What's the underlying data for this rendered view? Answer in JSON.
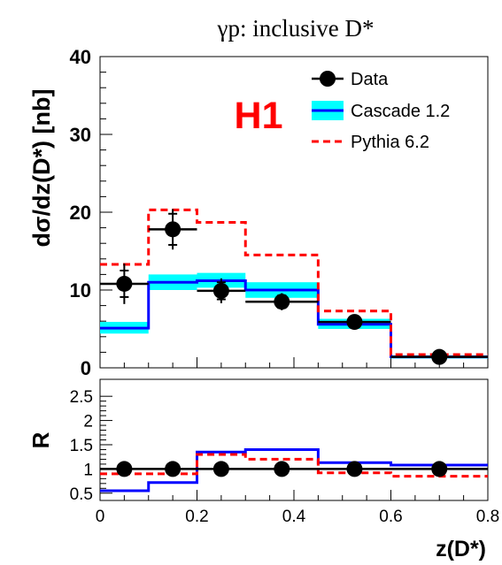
{
  "title": "γp:  inclusive D*",
  "watermark": "H1",
  "chart_data": [
    {
      "type": "histogram",
      "panel": "main",
      "ylabel": "dσ/dz(D*) [nb]",
      "xlim": [
        0,
        0.8
      ],
      "ylim": [
        0,
        40
      ],
      "yticks": [
        0,
        10,
        20,
        30,
        40
      ],
      "bins": [
        [
          0,
          0.1
        ],
        [
          0.1,
          0.2
        ],
        [
          0.2,
          0.3
        ],
        [
          0.3,
          0.45
        ],
        [
          0.45,
          0.6
        ],
        [
          0.6,
          0.8
        ]
      ],
      "legend": {
        "placement": "top-right",
        "entries": [
          "Data",
          "Cascade 1.2",
          "Pythia 6.2"
        ]
      },
      "series": [
        {
          "name": "Data",
          "kind": "points",
          "color": "#000000",
          "x": [
            0.05,
            0.15,
            0.25,
            0.375,
            0.525,
            0.7
          ],
          "y": [
            10.8,
            17.8,
            9.9,
            8.5,
            5.9,
            1.4
          ],
          "err_stat": [
            1.7,
            2.0,
            1.1,
            0.8,
            0.5,
            0.3
          ],
          "err_tot": [
            2.6,
            2.6,
            1.6,
            1.1,
            0.7,
            0.4
          ]
        },
        {
          "name": "Cascade 1.2",
          "kind": "step",
          "color": "#0000ff",
          "band_color": "#00ffff",
          "values": [
            5.1,
            11.0,
            11.2,
            10.0,
            5.6,
            1.4
          ],
          "band": [
            [
              4.4,
              5.9
            ],
            [
              10.0,
              12.0
            ],
            [
              10.3,
              12.2
            ],
            [
              9.0,
              11.0
            ],
            [
              5.0,
              6.3
            ],
            [
              1.2,
              1.6
            ]
          ]
        },
        {
          "name": "Pythia 6.2",
          "kind": "step",
          "color": "#ff0000",
          "dashed": true,
          "values": [
            13.3,
            20.3,
            18.7,
            14.5,
            7.3,
            1.7
          ]
        }
      ]
    },
    {
      "type": "histogram",
      "panel": "ratio",
      "ylabel": "R",
      "xlabel": "z(D*)",
      "xlim": [
        0,
        0.8
      ],
      "ylim": [
        0.35,
        2.85
      ],
      "yticks": [
        0.5,
        1,
        1.5,
        2,
        2.5
      ],
      "xticks": [
        0,
        0.2,
        0.4,
        0.6,
        0.8
      ],
      "bins": [
        [
          0,
          0.1
        ],
        [
          0.1,
          0.2
        ],
        [
          0.2,
          0.3
        ],
        [
          0.3,
          0.45
        ],
        [
          0.45,
          0.6
        ],
        [
          0.6,
          0.8
        ]
      ],
      "series": [
        {
          "name": "Data",
          "kind": "points",
          "color": "#000000",
          "x": [
            0.05,
            0.15,
            0.25,
            0.375,
            0.525,
            0.7
          ],
          "y": [
            1.0,
            1.0,
            1.0,
            1.0,
            1.0,
            1.0
          ],
          "err": [
            0.15,
            0.11,
            0.08,
            0.07,
            0.07,
            0.08
          ],
          "line": 1.0
        },
        {
          "name": "Cascade 1.2",
          "kind": "step",
          "color": "#0000ff",
          "values": [
            0.55,
            0.72,
            1.35,
            1.4,
            1.13,
            1.08
          ]
        },
        {
          "name": "Pythia 6.2",
          "kind": "step",
          "color": "#ff0000",
          "dashed": true,
          "values": [
            0.9,
            0.9,
            1.3,
            1.2,
            0.92,
            0.85
          ]
        }
      ]
    }
  ]
}
